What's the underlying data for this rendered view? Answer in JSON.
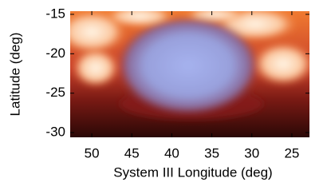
{
  "chart_data": {
    "type": "image",
    "xlabel": "System III Longitude (deg)",
    "ylabel": "Latitude (deg)",
    "xlim": [
      52.7,
      22.8
    ],
    "xticks": [
      50,
      45,
      40,
      35,
      30,
      25
    ],
    "ylim": [
      -30.6,
      -14.6
    ],
    "yticks": [
      -15,
      -20,
      -25,
      -30
    ]
  }
}
